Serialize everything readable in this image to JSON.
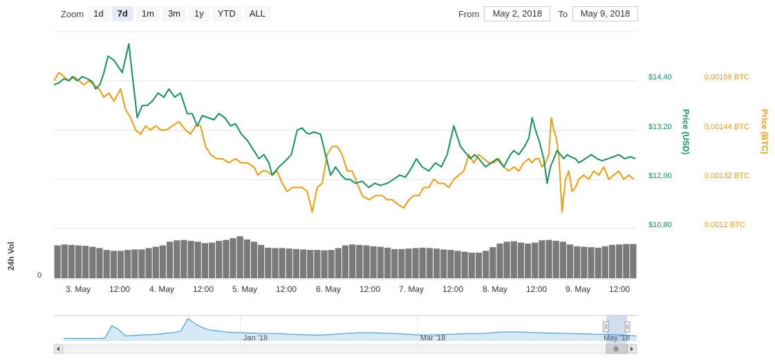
{
  "toolbar": {
    "zoom_label": "Zoom",
    "zoom_buttons": [
      "1d",
      "7d",
      "1m",
      "3m",
      "1y",
      "YTD",
      "ALL"
    ],
    "active_zoom": "7d",
    "from_label": "From",
    "from_value": "May 2, 2018",
    "to_label": "To",
    "to_value": "May 9, 2018"
  },
  "colors": {
    "usd": "#14915f",
    "btc": "#f29b0c",
    "volume": "#7a7a7a",
    "navigator_line": "#4a9fd9",
    "navigator_fill": "#d6e9f7",
    "grid": "#e6e6e6"
  },
  "chart_data": {
    "type": "line",
    "x_labels": [
      "3. May",
      "12:00",
      "4. May",
      "12:00",
      "5. May",
      "12:00",
      "6. May",
      "12:00",
      "7. May",
      "12:00",
      "8. May",
      "12:00",
      "9. May",
      "12:00"
    ],
    "y_left": {
      "title": "Price (USD)",
      "ticks": [
        "$14,40",
        "$13,20",
        "$12,00",
        "$10,80"
      ],
      "range": [
        10.8,
        14.4
      ]
    },
    "y_right": {
      "title": "Price (BTC)",
      "ticks": [
        "0,00156 BTC",
        "0,00144 BTC",
        "0,00132 BTC",
        "0,0012 BTC"
      ],
      "range": [
        0.0012,
        0.00156
      ]
    },
    "series": [
      {
        "name": "Price (USD)",
        "axis": "left",
        "x": [
          0,
          0.06,
          0.12,
          0.18,
          0.22,
          0.28,
          0.34,
          0.4,
          0.46,
          0.5,
          0.55,
          0.6,
          0.65,
          0.72,
          0.82,
          0.9,
          0.96,
          1.0,
          1.06,
          1.12,
          1.18,
          1.25,
          1.32,
          1.38,
          1.45,
          1.52,
          1.6,
          1.66,
          1.72,
          1.78,
          1.85,
          1.92,
          1.98,
          2.05,
          2.12,
          2.18,
          2.25,
          2.32,
          2.4,
          2.46,
          2.52,
          2.58,
          2.62,
          2.7,
          2.78,
          2.85,
          2.92,
          2.98,
          3.02,
          3.06,
          3.12,
          3.2,
          3.26,
          3.32,
          3.38,
          3.45,
          3.5,
          3.55,
          3.62,
          3.7,
          3.78,
          3.85,
          3.92,
          4.0,
          4.08,
          4.15,
          4.22,
          4.3,
          4.35,
          4.42,
          4.5,
          4.58,
          4.65,
          4.72,
          4.8,
          4.88,
          4.92,
          4.96,
          5.0,
          5.05,
          5.1,
          5.18,
          5.25,
          5.32,
          5.4,
          5.48,
          5.52,
          5.58,
          5.65,
          5.7,
          5.74,
          5.78,
          5.83,
          5.88,
          5.92,
          5.96,
          6.0,
          6.04,
          6.08,
          6.12,
          6.16,
          6.2,
          6.26,
          6.3,
          6.38,
          6.45,
          6.52,
          6.58,
          6.65,
          6.72,
          6.78,
          6.85,
          6.92,
          6.98
        ],
        "y": [
          14.3,
          14.35,
          14.45,
          14.4,
          14.5,
          14.4,
          14.5,
          14.45,
          14.38,
          14.2,
          14.3,
          14.6,
          15.0,
          14.9,
          14.6,
          15.3,
          14.2,
          13.5,
          13.8,
          13.8,
          13.9,
          14.1,
          14.0,
          14.2,
          14.0,
          14.1,
          13.6,
          13.6,
          13.3,
          13.55,
          13.5,
          13.45,
          13.6,
          13.5,
          13.3,
          13.35,
          13.1,
          12.95,
          12.7,
          12.5,
          12.6,
          12.4,
          12.1,
          12.3,
          12.45,
          12.6,
          13.2,
          13.25,
          13.15,
          13.1,
          13.15,
          13.1,
          12.6,
          12.1,
          12.3,
          12.1,
          12.0,
          12.0,
          11.9,
          11.95,
          11.8,
          11.9,
          11.85,
          11.9,
          12.0,
          12.1,
          12.05,
          12.3,
          12.5,
          12.3,
          12.2,
          12.4,
          12.3,
          12.6,
          13.3,
          12.8,
          12.7,
          12.6,
          12.5,
          12.6,
          12.5,
          12.3,
          12.4,
          12.5,
          12.3,
          12.6,
          12.7,
          12.6,
          12.8,
          13.0,
          13.5,
          13.2,
          12.9,
          12.5,
          11.9,
          12.3,
          12.5,
          12.7,
          12.6,
          12.5,
          12.6,
          12.55,
          12.5,
          12.4,
          12.5,
          12.6,
          12.5,
          12.45,
          12.5,
          12.55,
          12.6,
          12.5,
          12.55,
          12.5
        ]
      },
      {
        "name": "Price (BTC)",
        "axis": "right",
        "x": [
          0,
          0.06,
          0.12,
          0.18,
          0.24,
          0.3,
          0.36,
          0.42,
          0.48,
          0.54,
          0.6,
          0.66,
          0.72,
          0.8,
          0.86,
          0.92,
          0.98,
          1.04,
          1.1,
          1.16,
          1.22,
          1.28,
          1.35,
          1.42,
          1.5,
          1.58,
          1.64,
          1.7,
          1.76,
          1.82,
          1.88,
          1.95,
          2.02,
          2.1,
          2.18,
          2.25,
          2.32,
          2.4,
          2.45,
          2.5,
          2.55,
          2.62,
          2.68,
          2.74,
          2.8,
          2.86,
          2.92,
          2.98,
          3.04,
          3.1,
          3.16,
          3.22,
          3.28,
          3.34,
          3.4,
          3.46,
          3.52,
          3.58,
          3.64,
          3.7,
          3.78,
          3.86,
          3.94,
          4.0,
          4.06,
          4.12,
          4.2,
          4.26,
          4.32,
          4.38,
          4.44,
          4.5,
          4.56,
          4.62,
          4.68,
          4.74,
          4.8,
          4.86,
          4.92,
          4.98,
          5.04,
          5.1,
          5.16,
          5.22,
          5.28,
          5.34,
          5.4,
          5.46,
          5.52,
          5.58,
          5.64,
          5.7,
          5.74,
          5.78,
          5.82,
          5.86,
          5.9,
          5.94,
          5.97,
          6.0,
          6.03,
          6.06,
          6.1,
          6.14,
          6.18,
          6.22,
          6.26,
          6.3,
          6.36,
          6.42,
          6.48,
          6.54,
          6.6,
          6.66,
          6.72,
          6.78,
          6.84,
          6.9,
          6.96
        ],
        "y": [
          0.00156,
          0.00158,
          0.00157,
          0.00156,
          0.00157,
          0.00156,
          0.00155,
          0.00156,
          0.00155,
          0.00154,
          0.00152,
          0.00153,
          0.00151,
          0.00154,
          0.00149,
          0.00147,
          0.00144,
          0.00143,
          0.00145,
          0.00144,
          0.00145,
          0.00144,
          0.00144,
          0.00145,
          0.00146,
          0.00144,
          0.00143,
          0.00145,
          0.00145,
          0.0014,
          0.00138,
          0.00137,
          0.00137,
          0.00136,
          0.00137,
          0.00136,
          0.00136,
          0.00135,
          0.00133,
          0.00134,
          0.00134,
          0.00133,
          0.00134,
          0.00131,
          0.00129,
          0.0013,
          0.0013,
          0.0013,
          0.00129,
          0.00124,
          0.0013,
          0.00131,
          0.00138,
          0.0014,
          0.0014,
          0.00138,
          0.00134,
          0.00134,
          0.00131,
          0.00128,
          0.00127,
          0.00128,
          0.00128,
          0.00127,
          0.00127,
          0.00126,
          0.00125,
          0.00127,
          0.00128,
          0.00128,
          0.0013,
          0.0013,
          0.00132,
          0.00131,
          0.00131,
          0.0013,
          0.00132,
          0.00133,
          0.00134,
          0.00138,
          0.00136,
          0.00138,
          0.00137,
          0.00136,
          0.00136,
          0.00137,
          0.00135,
          0.00134,
          0.00135,
          0.00134,
          0.00136,
          0.00137,
          0.00136,
          0.00137,
          0.00137,
          0.00135,
          0.00136,
          0.00138,
          0.00147,
          0.00144,
          0.00142,
          0.00138,
          0.00124,
          0.00132,
          0.00134,
          0.00129,
          0.0013,
          0.00132,
          0.00133,
          0.00132,
          0.00134,
          0.00133,
          0.00135,
          0.00132,
          0.00133,
          0.00134,
          0.00132,
          0.00133,
          0.00132
        ]
      }
    ],
    "volume": {
      "title": "24h Vol",
      "zero_label": "0",
      "relative_values": [
        0.72,
        0.74,
        0.73,
        0.72,
        0.71,
        0.69,
        0.66,
        0.62,
        0.6,
        0.6,
        0.62,
        0.63,
        0.63,
        0.66,
        0.69,
        0.72,
        0.8,
        0.83,
        0.84,
        0.82,
        0.8,
        0.77,
        0.78,
        0.82,
        0.84,
        0.88,
        0.92,
        0.85,
        0.8,
        0.73,
        0.67,
        0.66,
        0.66,
        0.65,
        0.64,
        0.63,
        0.62,
        0.62,
        0.61,
        0.62,
        0.66,
        0.72,
        0.74,
        0.73,
        0.72,
        0.7,
        0.69,
        0.67,
        0.64,
        0.64,
        0.65,
        0.66,
        0.67,
        0.66,
        0.65,
        0.63,
        0.62,
        0.6,
        0.58,
        0.56,
        0.56,
        0.6,
        0.68,
        0.76,
        0.8,
        0.81,
        0.78,
        0.76,
        0.78,
        0.83,
        0.84,
        0.82,
        0.8,
        0.74,
        0.7,
        0.69,
        0.68,
        0.67,
        0.7,
        0.73,
        0.74,
        0.75,
        0.75
      ]
    },
    "navigator": {
      "x_labels": [
        "Jan '18",
        "Mar '18",
        "May '18"
      ],
      "relative_values": [
        0.1,
        0.1,
        0.1,
        0.1,
        0.1,
        0.1,
        0.12,
        0.62,
        0.45,
        0.2,
        0.22,
        0.24,
        0.25,
        0.26,
        0.28,
        0.32,
        0.34,
        0.4,
        0.9,
        0.7,
        0.55,
        0.45,
        0.42,
        0.38,
        0.35,
        0.34,
        0.33,
        0.32,
        0.31,
        0.3,
        0.3,
        0.3,
        0.28,
        0.27,
        0.26,
        0.25,
        0.24,
        0.24,
        0.25,
        0.27,
        0.29,
        0.31,
        0.32,
        0.33,
        0.34,
        0.33,
        0.32,
        0.31,
        0.3,
        0.28,
        0.27,
        0.25,
        0.24,
        0.24,
        0.25,
        0.26,
        0.27,
        0.28,
        0.29,
        0.3,
        0.3,
        0.31,
        0.33,
        0.35,
        0.36,
        0.37,
        0.36,
        0.35,
        0.34,
        0.33,
        0.32,
        0.32,
        0.31,
        0.3,
        0.3,
        0.29,
        0.28,
        0.27,
        0.27,
        0.26,
        0.25,
        0.24,
        0.22,
        0.2
      ]
    }
  }
}
